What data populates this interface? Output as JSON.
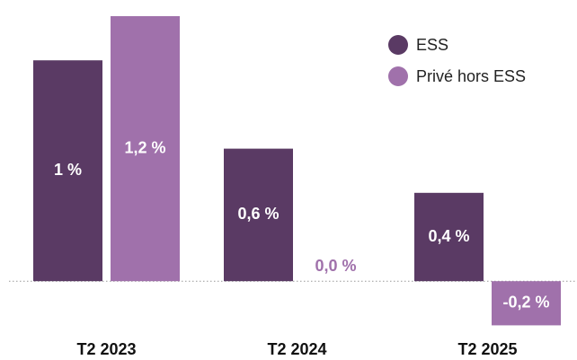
{
  "chart_data": {
    "type": "bar",
    "categories": [
      "T2 2023",
      "T2 2024",
      "T2 2025"
    ],
    "series": [
      {
        "name": "ESS",
        "color": "#5a3a64",
        "values": [
          1,
          0.6,
          0.4
        ],
        "value_labels": [
          "1 %",
          "0,6 %",
          "0,4 %"
        ]
      },
      {
        "name": "Privé hors ESS",
        "color": "#a071ab",
        "values": [
          1.2,
          0.0,
          -0.2
        ],
        "value_labels": [
          "1,2 %",
          "0,0 %",
          "-0,2 %"
        ]
      }
    ],
    "ylim": [
      -0.25,
      1.2
    ],
    "grid": false,
    "legend": "upper right"
  }
}
